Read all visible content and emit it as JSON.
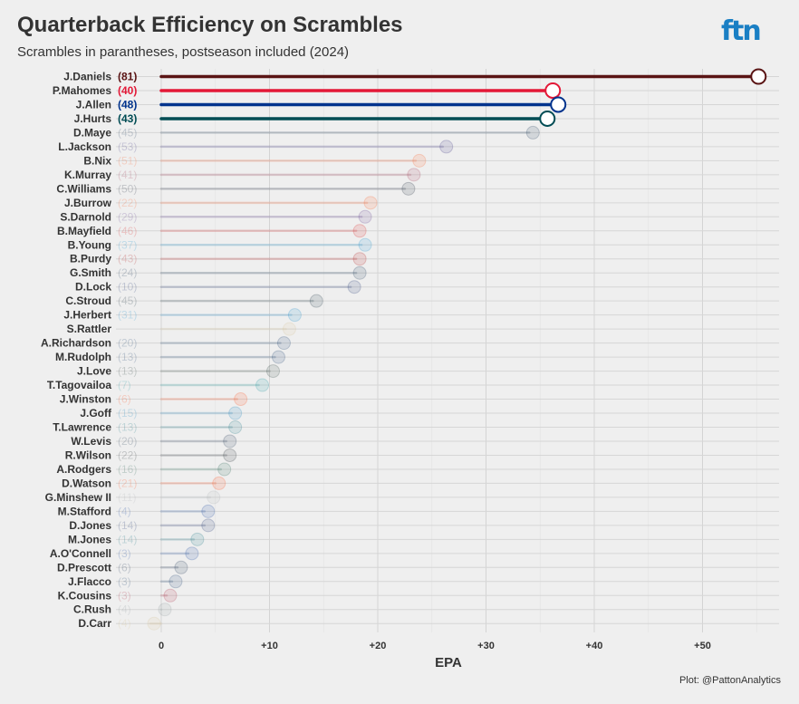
{
  "title": "Quarterback Efficiency on Scrambles",
  "subtitle": "Scrambles in parantheses, postseason included (2024)",
  "brand": "ftn",
  "credit": "Plot: @PattonAnalytics",
  "chart_data": {
    "type": "bar",
    "orientation": "horizontal",
    "title": "Quarterback Efficiency on Scrambles",
    "subtitle": "Scrambles in parantheses, postseason included (2024)",
    "xlabel": "EPA",
    "ylabel": "",
    "xlim": [
      -4,
      57
    ],
    "x_ticks": [
      0,
      10,
      20,
      30,
      40,
      50
    ],
    "x_tick_labels": [
      "0",
      "+10",
      "+20",
      "+30",
      "+40",
      "+50"
    ],
    "grid": true,
    "highlighted": [
      "J.Daniels",
      "P.Mahomes",
      "J.Allen",
      "J.Hurts"
    ],
    "series": [
      {
        "player": "J.Daniels",
        "scrambles": 81,
        "epa": 54.5,
        "color": "#5a1414"
      },
      {
        "player": "P.Mahomes",
        "scrambles": 40,
        "epa": 35.5,
        "color": "#e31837"
      },
      {
        "player": "J.Allen",
        "scrambles": 48,
        "epa": 36.0,
        "color": "#00338d"
      },
      {
        "player": "J.Hurts",
        "scrambles": 43,
        "epa": 35.0,
        "color": "#004c54"
      },
      {
        "player": "D.Maye",
        "scrambles": 45,
        "epa": 34.0,
        "color": "#002244"
      },
      {
        "player": "L.Jackson",
        "scrambles": 53,
        "epa": 26.0,
        "color": "#241773"
      },
      {
        "player": "B.Nix",
        "scrambles": 51,
        "epa": 23.5,
        "color": "#fb4f14"
      },
      {
        "player": "K.Murray",
        "scrambles": 41,
        "epa": 23.0,
        "color": "#97233f"
      },
      {
        "player": "C.Williams",
        "scrambles": 50,
        "epa": 22.5,
        "color": "#0b162a"
      },
      {
        "player": "J.Burrow",
        "scrambles": 22,
        "epa": 19.0,
        "color": "#fb4f14"
      },
      {
        "player": "S.Darnold",
        "scrambles": 29,
        "epa": 18.5,
        "color": "#4f2683"
      },
      {
        "player": "B.Mayfield",
        "scrambles": 46,
        "epa": 18.0,
        "color": "#d50a0a"
      },
      {
        "player": "B.Young",
        "scrambles": 37,
        "epa": 18.5,
        "color": "#0085ca"
      },
      {
        "player": "B.Purdy",
        "scrambles": 43,
        "epa": 18.0,
        "color": "#aa0000"
      },
      {
        "player": "G.Smith",
        "scrambles": 24,
        "epa": 18.0,
        "color": "#002244"
      },
      {
        "player": "D.Lock",
        "scrambles": 10,
        "epa": 17.5,
        "color": "#0b2265"
      },
      {
        "player": "C.Stroud",
        "scrambles": 45,
        "epa": 14.0,
        "color": "#03202f"
      },
      {
        "player": "J.Herbert",
        "scrambles": 31,
        "epa": 12.0,
        "color": "#0080c6"
      },
      {
        "player": "S.Rattler",
        "scrambles": null,
        "epa": 11.5,
        "color": "#d3bc8d"
      },
      {
        "player": "A.Richardson",
        "scrambles": 20,
        "epa": 11.0,
        "color": "#002c5f"
      },
      {
        "player": "M.Rudolph",
        "scrambles": 13,
        "epa": 10.5,
        "color": "#002c5f"
      },
      {
        "player": "J.Love",
        "scrambles": 13,
        "epa": 10.0,
        "color": "#203731"
      },
      {
        "player": "T.Tagovailoa",
        "scrambles": 7,
        "epa": 9.0,
        "color": "#008e97"
      },
      {
        "player": "J.Winston",
        "scrambles": 6,
        "epa": 7.0,
        "color": "#ff3c00"
      },
      {
        "player": "J.Goff",
        "scrambles": 15,
        "epa": 6.5,
        "color": "#0076b6"
      },
      {
        "player": "T.Lawrence",
        "scrambles": 13,
        "epa": 6.5,
        "color": "#006778"
      },
      {
        "player": "W.Levis",
        "scrambles": 20,
        "epa": 6.0,
        "color": "#0c2340"
      },
      {
        "player": "R.Wilson",
        "scrambles": 22,
        "epa": 6.0,
        "color": "#101820"
      },
      {
        "player": "A.Rodgers",
        "scrambles": 16,
        "epa": 5.5,
        "color": "#125740"
      },
      {
        "player": "D.Watson",
        "scrambles": 21,
        "epa": 5.0,
        "color": "#ff3c00"
      },
      {
        "player": "G.Minshew II",
        "scrambles": 11,
        "epa": 4.5,
        "color": "#a5acaf"
      },
      {
        "player": "M.Stafford",
        "scrambles": 4,
        "epa": 4.0,
        "color": "#003594"
      },
      {
        "player": "D.Jones",
        "scrambles": 14,
        "epa": 4.0,
        "color": "#0b2265"
      },
      {
        "player": "M.Jones",
        "scrambles": 14,
        "epa": 3.0,
        "color": "#006778"
      },
      {
        "player": "A.O'Connell",
        "scrambles": 3,
        "epa": 2.5,
        "color": "#003594"
      },
      {
        "player": "D.Prescott",
        "scrambles": 6,
        "epa": 1.5,
        "color": "#041e42"
      },
      {
        "player": "J.Flacco",
        "scrambles": 3,
        "epa": 1.0,
        "color": "#002c5f"
      },
      {
        "player": "K.Cousins",
        "scrambles": 3,
        "epa": 0.5,
        "color": "#a71930"
      },
      {
        "player": "C.Rush",
        "scrambles": 4,
        "epa": 0.0,
        "color": "#869397"
      },
      {
        "player": "D.Carr",
        "scrambles": 4,
        "epa": -1.0,
        "color": "#d3bc8d"
      }
    ]
  }
}
